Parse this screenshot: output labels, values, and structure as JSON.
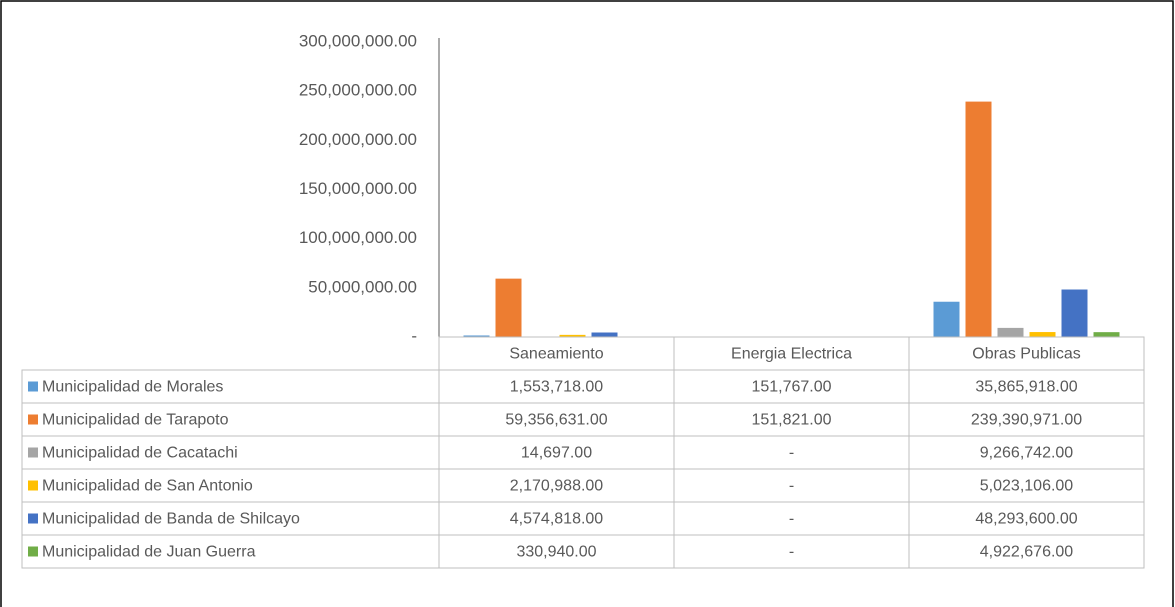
{
  "chart_data": {
    "type": "bar",
    "categories": [
      "Saneamiento",
      "Energia Electrica",
      "Obras Publicas"
    ],
    "series": [
      {
        "name": "Municipalidad de Morales",
        "color": "#5b9bd5",
        "values": [
          1553718,
          151767,
          35865918
        ],
        "value_labels": [
          "1,553,718.00",
          "151,767.00",
          "35,865,918.00"
        ]
      },
      {
        "name": "Municipalidad de Tarapoto",
        "color": "#ed7d31",
        "values": [
          59356631,
          151821,
          239390971
        ],
        "value_labels": [
          "59,356,631.00",
          "151,821.00",
          "239,390,971.00"
        ]
      },
      {
        "name": "Municipalidad de Cacatachi",
        "color": "#a5a5a5",
        "values": [
          14697,
          0,
          9266742
        ],
        "value_labels": [
          "14,697.00",
          "-",
          "9,266,742.00"
        ]
      },
      {
        "name": "Municipalidad de San Antonio",
        "color": "#ffc000",
        "values": [
          2170988,
          0,
          5023106
        ],
        "value_labels": [
          "2,170,988.00",
          "-",
          "5,023,106.00"
        ]
      },
      {
        "name": "Municipalidad de Banda de Shilcayo",
        "color": "#4472c4",
        "values": [
          4574818,
          0,
          48293600
        ],
        "value_labels": [
          "4,574,818.00",
          "-",
          "48,293,600.00"
        ]
      },
      {
        "name": "Municipalidad de Juan Guerra",
        "color": "#70ad47",
        "values": [
          330940,
          0,
          4922676
        ],
        "value_labels": [
          "330,940.00",
          "-",
          "4,922,676.00"
        ]
      }
    ],
    "ylim": [
      0,
      300000000
    ],
    "yticks": [
      {
        "value": 0,
        "label": "-"
      },
      {
        "value": 50000000,
        "label": "50,000,000.00"
      },
      {
        "value": 100000000,
        "label": "100,000,000.00"
      },
      {
        "value": 150000000,
        "label": "150,000,000.00"
      },
      {
        "value": 200000000,
        "label": "200,000,000.00"
      },
      {
        "value": 250000000,
        "label": "250,000,000.00"
      },
      {
        "value": 300000000,
        "label": "300,000,000.00"
      }
    ],
    "grid": false,
    "data_table": true
  }
}
